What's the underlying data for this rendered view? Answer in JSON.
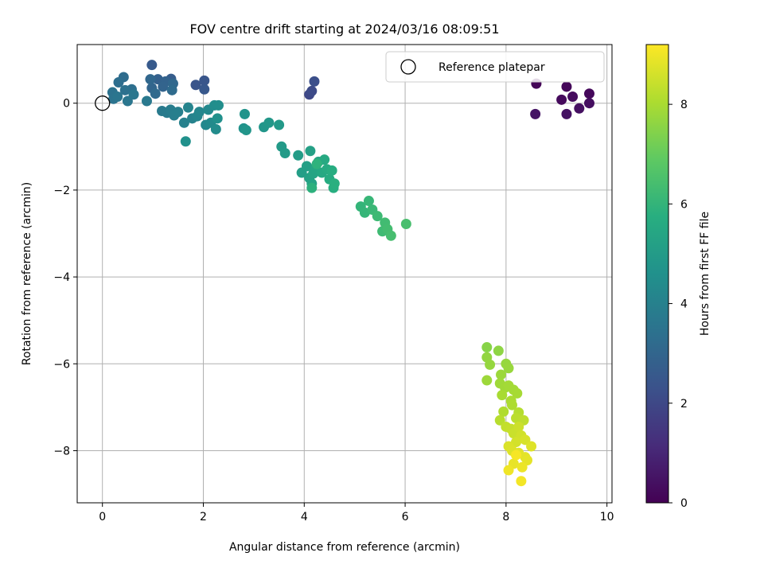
{
  "chart_data": {
    "type": "scatter",
    "title": "FOV centre drift starting at 2024/03/16 08:09:51",
    "xlabel": "Angular distance from reference (arcmin)",
    "ylabel": "Rotation from reference (arcmin)",
    "xlim": [
      -0.5,
      10.1
    ],
    "ylim": [
      -9.2,
      1.35
    ],
    "xticks": [
      0,
      2,
      4,
      6,
      8,
      10
    ],
    "yticks": [
      0,
      -2,
      -4,
      -6,
      -8
    ],
    "xtick_labels": [
      "0",
      "2",
      "4",
      "6",
      "8",
      "10"
    ],
    "ytick_labels": [
      "0",
      "−2",
      "−4",
      "−6",
      "−8"
    ],
    "grid": true,
    "legend": {
      "position": "top-right",
      "entries": [
        {
          "label": "Reference platepar",
          "marker": "open-circle"
        }
      ]
    },
    "reference_point": {
      "x": 0,
      "y": 0
    },
    "colorbar": {
      "label": "Hours from first FF file",
      "colormap": "viridis",
      "range": [
        0,
        9.2
      ],
      "ticks": [
        0,
        2,
        4,
        6,
        8
      ],
      "tick_labels": [
        "0",
        "2",
        "4",
        "6",
        "8"
      ]
    },
    "points": [
      [
        8.6,
        0.45,
        0.1
      ],
      [
        9.2,
        0.38,
        0.15
      ],
      [
        9.65,
        0.22,
        0.2
      ],
      [
        9.1,
        0.08,
        0.25
      ],
      [
        9.32,
        0.15,
        0.3
      ],
      [
        9.65,
        0.0,
        0.35
      ],
      [
        9.45,
        -0.12,
        0.4
      ],
      [
        9.2,
        -0.25,
        0.45
      ],
      [
        8.58,
        -0.25,
        0.5
      ],
      [
        4.1,
        0.2,
        2.0
      ],
      [
        4.15,
        0.28,
        2.1
      ],
      [
        4.2,
        0.5,
        2.2
      ],
      [
        1.85,
        0.42,
        2.4
      ],
      [
        2.02,
        0.52,
        2.45
      ],
      [
        2.02,
        0.32,
        2.5
      ],
      [
        0.98,
        0.88,
        2.6
      ],
      [
        1.36,
        0.56,
        2.7
      ],
      [
        1.1,
        0.55,
        2.8
      ],
      [
        1.25,
        0.5,
        2.9
      ],
      [
        1.2,
        0.38,
        2.95
      ],
      [
        0.98,
        0.35,
        3.0
      ],
      [
        0.95,
        0.55,
        3.05
      ],
      [
        1.4,
        0.45,
        3.1
      ],
      [
        1.05,
        0.22,
        3.15
      ],
      [
        1.38,
        0.3,
        3.2
      ],
      [
        0.42,
        0.6,
        3.25
      ],
      [
        0.32,
        0.48,
        3.3
      ],
      [
        0.58,
        0.32,
        3.35
      ],
      [
        0.45,
        0.3,
        3.4
      ],
      [
        0.2,
        0.25,
        3.45
      ],
      [
        0.22,
        0.1,
        3.5
      ],
      [
        0.3,
        0.15,
        3.55
      ],
      [
        0.5,
        0.05,
        3.6
      ],
      [
        0.62,
        0.2,
        3.65
      ],
      [
        0.88,
        0.05,
        3.7
      ],
      [
        1.18,
        -0.18,
        3.75
      ],
      [
        1.28,
        -0.22,
        3.8
      ],
      [
        1.35,
        -0.15,
        3.85
      ],
      [
        1.42,
        -0.28,
        3.9
      ],
      [
        1.5,
        -0.2,
        3.95
      ],
      [
        1.62,
        -0.45,
        4.0
      ],
      [
        1.78,
        -0.35,
        4.05
      ],
      [
        1.7,
        -0.1,
        4.1
      ],
      [
        1.88,
        -0.3,
        4.15
      ],
      [
        1.92,
        -0.2,
        4.2
      ],
      [
        2.05,
        -0.5,
        4.25
      ],
      [
        2.1,
        -0.15,
        4.3
      ],
      [
        2.15,
        -0.45,
        4.35
      ],
      [
        2.25,
        -0.6,
        4.4
      ],
      [
        2.22,
        -0.05,
        4.45
      ],
      [
        2.3,
        -0.05,
        4.5
      ],
      [
        2.28,
        -0.35,
        4.55
      ],
      [
        1.65,
        -0.88,
        4.6
      ],
      [
        2.8,
        -0.58,
        4.65
      ],
      [
        2.82,
        -0.25,
        4.7
      ],
      [
        2.85,
        -0.62,
        4.75
      ],
      [
        3.2,
        -0.55,
        4.8
      ],
      [
        3.3,
        -0.45,
        4.85
      ],
      [
        3.5,
        -0.5,
        4.9
      ],
      [
        3.55,
        -1.0,
        4.95
      ],
      [
        3.62,
        -1.15,
        5.0
      ],
      [
        3.88,
        -1.2,
        5.05
      ],
      [
        3.95,
        -1.6,
        5.1
      ],
      [
        4.05,
        -1.45,
        5.15
      ],
      [
        4.12,
        -1.1,
        5.2
      ],
      [
        4.1,
        -1.72,
        5.25
      ],
      [
        4.15,
        -1.85,
        5.3
      ],
      [
        4.18,
        -1.62,
        5.35
      ],
      [
        4.22,
        -1.5,
        5.4
      ],
      [
        4.28,
        -1.35,
        5.45
      ],
      [
        4.35,
        -1.6,
        5.5
      ],
      [
        4.4,
        -1.3,
        5.55
      ],
      [
        4.45,
        -1.52,
        5.6
      ],
      [
        4.5,
        -1.75,
        5.65
      ],
      [
        4.55,
        -1.55,
        5.7
      ],
      [
        4.58,
        -1.95,
        5.75
      ],
      [
        4.6,
        -1.85,
        5.8
      ],
      [
        4.15,
        -1.95,
        5.85
      ],
      [
        4.25,
        -1.4,
        5.9
      ],
      [
        5.12,
        -2.38,
        6.0
      ],
      [
        5.2,
        -2.52,
        6.05
      ],
      [
        5.28,
        -2.25,
        6.1
      ],
      [
        5.35,
        -2.45,
        6.15
      ],
      [
        5.45,
        -2.6,
        6.2
      ],
      [
        5.55,
        -2.95,
        6.25
      ],
      [
        5.6,
        -2.75,
        6.3
      ],
      [
        5.65,
        -2.9,
        6.35
      ],
      [
        5.72,
        -3.05,
        6.4
      ],
      [
        6.02,
        -2.78,
        6.45
      ],
      [
        7.62,
        -5.62,
        7.5
      ],
      [
        7.85,
        -5.7,
        7.6
      ],
      [
        7.62,
        -5.85,
        7.65
      ],
      [
        7.68,
        -6.02,
        7.7
      ],
      [
        8.0,
        -6.0,
        7.72
      ],
      [
        8.05,
        -6.1,
        7.75
      ],
      [
        7.9,
        -6.25,
        7.8
      ],
      [
        7.62,
        -6.38,
        7.82
      ],
      [
        7.88,
        -6.45,
        7.85
      ],
      [
        7.98,
        -6.55,
        7.88
      ],
      [
        8.05,
        -6.5,
        7.9
      ],
      [
        8.15,
        -6.6,
        7.92
      ],
      [
        8.22,
        -6.68,
        7.95
      ],
      [
        7.92,
        -6.72,
        7.98
      ],
      [
        8.1,
        -6.85,
        8.0
      ],
      [
        8.12,
        -6.95,
        8.05
      ],
      [
        7.95,
        -7.1,
        8.1
      ],
      [
        8.25,
        -7.12,
        8.15
      ],
      [
        7.88,
        -7.3,
        8.2
      ],
      [
        8.2,
        -7.25,
        8.25
      ],
      [
        8.35,
        -7.3,
        8.3
      ],
      [
        8.0,
        -7.45,
        8.35
      ],
      [
        8.1,
        -7.5,
        8.4
      ],
      [
        8.15,
        -7.6,
        8.45
      ],
      [
        8.25,
        -7.45,
        8.5
      ],
      [
        8.3,
        -7.65,
        8.55
      ],
      [
        8.2,
        -7.8,
        8.6
      ],
      [
        8.38,
        -7.75,
        8.65
      ],
      [
        8.05,
        -7.9,
        8.7
      ],
      [
        8.12,
        -8.0,
        8.72
      ],
      [
        8.5,
        -7.9,
        8.75
      ],
      [
        8.25,
        -8.05,
        8.8
      ],
      [
        8.38,
        -8.15,
        8.82
      ],
      [
        8.42,
        -8.22,
        8.85
      ],
      [
        8.15,
        -8.3,
        8.9
      ],
      [
        8.32,
        -8.38,
        8.95
      ],
      [
        8.05,
        -8.45,
        9.0
      ],
      [
        8.3,
        -8.7,
        9.05
      ],
      [
        8.2,
        -8.1,
        9.1
      ]
    ]
  }
}
